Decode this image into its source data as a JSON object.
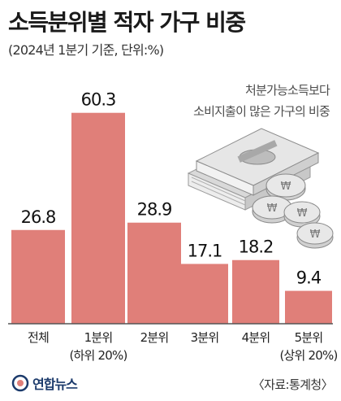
{
  "title": "소득분위별 적자 가구 비중",
  "subtitle": "(2024년 1분기 기준, 단위:%)",
  "annotation": [
    "처분가능소득보다",
    "소비지출이 많은 가구의 비중"
  ],
  "source_logo": "연합뉴스",
  "source": "〈자료:통계청〉",
  "colors": {
    "bar": "#e07f79",
    "axis": "#555555",
    "text": "#222222"
  },
  "icons": [
    "money-stack-icon",
    "coin-stack-icon",
    "yonhap-logo-icon"
  ],
  "chart_data": {
    "type": "bar",
    "categories": [
      "전체",
      "1분위",
      "2분위",
      "3분위",
      "4분위",
      "5분위"
    ],
    "category_sublabels": [
      "",
      "(하위 20%)",
      "",
      "",
      "",
      "(상위 20%)"
    ],
    "values": [
      26.8,
      60.3,
      28.9,
      17.1,
      18.2,
      9.4
    ],
    "data_labels": [
      "26.8",
      "60.3",
      "28.9",
      "17.1",
      "18.2",
      "9.4"
    ],
    "ylim": [
      0,
      65
    ],
    "grid": false,
    "legend": "none"
  }
}
